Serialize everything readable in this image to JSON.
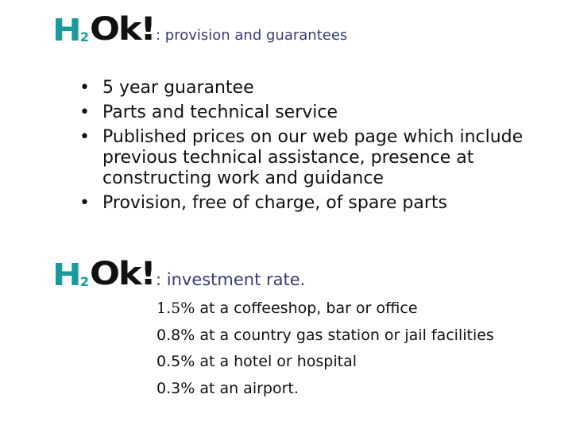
{
  "colors": {
    "logo_teal": "#1a9a9a",
    "logo_black": "#111111",
    "heading": "#3a3a7a"
  },
  "logo": {
    "h": "H",
    "two": "2",
    "ok": "Ok!"
  },
  "section1": {
    "heading": ": provision and guarantees",
    "bullets": [
      "5 year guarantee",
      "Parts and technical service",
      "Published prices on our web page which include previous technical assistance, presence at constructing work and guidance",
      "Provision, free of charge, of spare parts"
    ]
  },
  "section2": {
    "heading": ": investment rate.",
    "rates": [
      {
        "pct": "1.5%",
        "text": " at a coffeeshop, bar or office"
      },
      {
        "pct": "0.8%",
        "text": " at a country gas station or jail facilities"
      },
      {
        "pct": "0.5%",
        "text": " at a hotel or hospital"
      },
      {
        "pct": "0.3%",
        "text": " at an airport."
      }
    ]
  }
}
